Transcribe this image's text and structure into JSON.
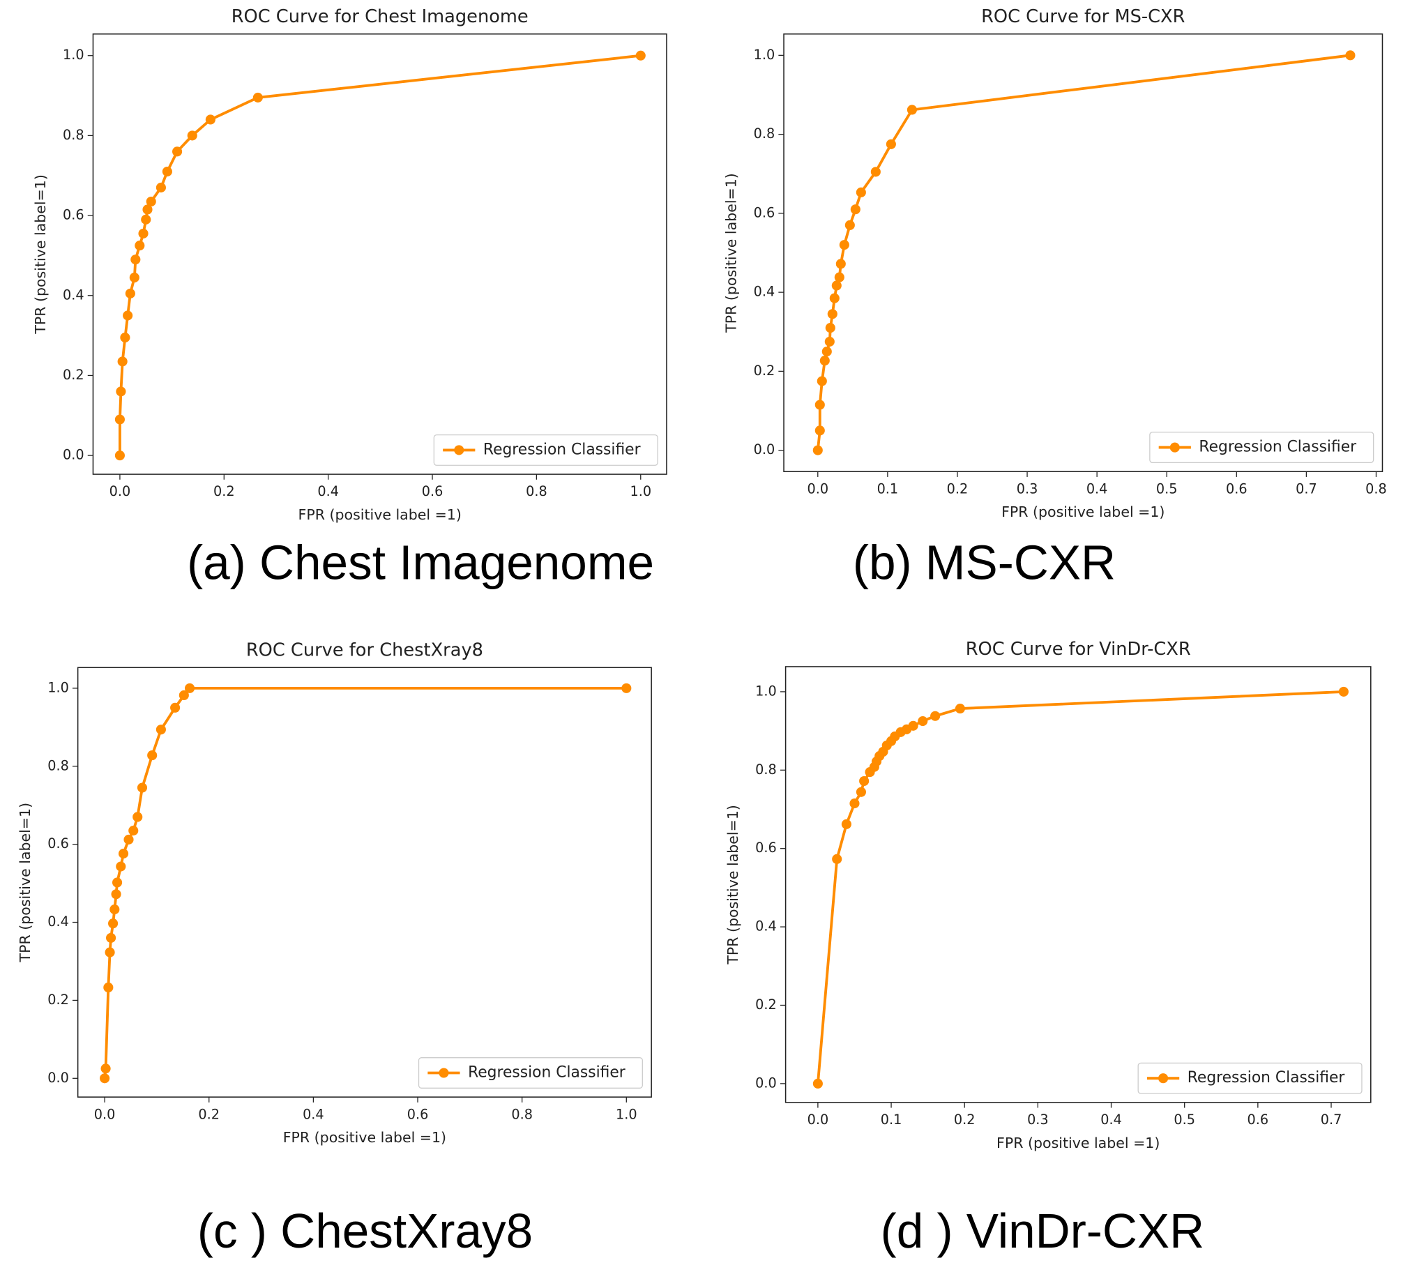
{
  "chart_data": [
    {
      "type": "line",
      "title": "ROC Curve for Chest Imagenome",
      "caption": "(a) Chest Imagenome",
      "xlabel": "FPR (positive label =1)",
      "ylabel": "TPR (positive label=1)",
      "xlim": [
        -0.0515,
        1.0498
      ],
      "ylim": [
        -0.047,
        1.054
      ],
      "xticks": [
        {
          "value": 0,
          "label": "0.0"
        },
        0.2,
        0.4,
        0.6,
        0.8,
        {
          "value": 1,
          "label": "1.0"
        }
      ],
      "yticks": [
        {
          "value": 0,
          "label": "0.0"
        },
        0.2,
        0.4,
        0.6,
        0.8,
        {
          "value": 1,
          "label": "1.0"
        }
      ],
      "legend": "lower right",
      "x": [
        0,
        0,
        0.002,
        0.005,
        0.01,
        0.015,
        0.02,
        0.028,
        0.03,
        0.038,
        0.045,
        0.05,
        0.053,
        0.06,
        0.079,
        0.091,
        0.11,
        0.139,
        0.174,
        0.265,
        1
      ],
      "series": [
        {
          "name": "Regression Classifier",
          "color": "#ff8c00",
          "values": [
            0,
            0.09,
            0.16,
            0.235,
            0.295,
            0.35,
            0.405,
            0.445,
            0.49,
            0.525,
            0.555,
            0.59,
            0.615,
            0.635,
            0.67,
            0.71,
            0.76,
            0.8,
            0.84,
            0.895,
            1
          ]
        }
      ]
    },
    {
      "type": "line",
      "title": "ROC Curve for MS-CXR",
      "caption": "(b) MS-CXR",
      "xlabel": "FPR (positive label =1)",
      "ylabel": "TPR (positive label=1)",
      "xlim": [
        -0.0487,
        0.809
      ],
      "ylim": [
        -0.054,
        1.054
      ],
      "xticks": [
        {
          "value": 0,
          "label": "0.0"
        },
        0.1,
        0.2,
        0.3,
        0.4,
        0.5,
        0.6,
        0.7,
        0.8
      ],
      "yticks": [
        {
          "value": 0,
          "label": "0.0"
        },
        0.2,
        0.4,
        0.6,
        0.8,
        {
          "value": 1,
          "label": "1.0"
        }
      ],
      "legend": "lower right",
      "x": [
        0,
        0.003,
        0.003,
        0.006,
        0.01,
        0.013,
        0.017,
        0.018,
        0.021,
        0.024,
        0.027,
        0.031,
        0.033,
        0.038,
        0.046,
        0.054,
        0.062,
        0.083,
        0.105,
        0.135,
        0.763
      ],
      "series": [
        {
          "name": "Regression Classifier",
          "color": "#ff8c00",
          "values": [
            0,
            0.05,
            0.115,
            0.175,
            0.227,
            0.25,
            0.275,
            0.31,
            0.345,
            0.385,
            0.417,
            0.438,
            0.472,
            0.52,
            0.57,
            0.61,
            0.653,
            0.705,
            0.775,
            0.862,
            1
          ]
        }
      ]
    },
    {
      "type": "line",
      "title": "ROC Curve for ChestXray8",
      "caption": "(c ) ChestXray8",
      "xlabel": "FPR (positive label =1)",
      "ylabel": "TPR (positive label=1)",
      "xlim": [
        -0.0514,
        1.0479
      ],
      "ylim": [
        -0.048,
        1.053
      ],
      "xticks": [
        {
          "value": 0,
          "label": "0.0"
        },
        0.2,
        0.4,
        0.6,
        0.8,
        {
          "value": 1,
          "label": "1.0"
        }
      ],
      "yticks": [
        {
          "value": 0,
          "label": "0.0"
        },
        0.2,
        0.4,
        0.6,
        0.8,
        {
          "value": 1,
          "label": "1.0"
        }
      ],
      "legend": "lower right",
      "x": [
        0,
        0.002,
        0.007,
        0.01,
        0.012,
        0.016,
        0.019,
        0.022,
        0.024,
        0.031,
        0.036,
        0.046,
        0.055,
        0.063,
        0.072,
        0.091,
        0.108,
        0.135,
        0.152,
        0.163,
        1
      ],
      "series": [
        {
          "name": "Regression Classifier",
          "color": "#ff8c00",
          "values": [
            0,
            0.025,
            0.233,
            0.323,
            0.36,
            0.397,
            0.433,
            0.472,
            0.502,
            0.543,
            0.576,
            0.612,
            0.635,
            0.67,
            0.745,
            0.828,
            0.894,
            0.95,
            0.982,
            1,
            1
          ]
        }
      ]
    },
    {
      "type": "line",
      "title": "ROC Curve for VinDr-CXR",
      "caption": "(d ) VinDr-CXR",
      "xlabel": "FPR (positive label =1)",
      "ylabel": "TPR (positive label=1)",
      "xlim": [
        -0.044,
        0.754
      ],
      "ylim": [
        -0.048,
        1.064
      ],
      "xticks": [
        {
          "value": 0,
          "label": "0.0"
        },
        0.1,
        0.2,
        0.3,
        0.4,
        0.5,
        0.6,
        0.7
      ],
      "yticks": [
        {
          "value": 0,
          "label": "0.0"
        },
        0.2,
        0.4,
        0.6,
        0.8,
        {
          "value": 1,
          "label": "1.0"
        }
      ],
      "legend": "lower right",
      "x": [
        0,
        0.026,
        0.039,
        0.05,
        0.059,
        0.063,
        0.071,
        0.077,
        0.08,
        0.084,
        0.089,
        0.094,
        0.1,
        0.105,
        0.113,
        0.121,
        0.13,
        0.143,
        0.16,
        0.194,
        0.717
      ],
      "series": [
        {
          "name": "Regression Classifier",
          "color": "#ff8c00",
          "values": [
            0,
            0.573,
            0.662,
            0.715,
            0.744,
            0.772,
            0.795,
            0.808,
            0.822,
            0.836,
            0.847,
            0.863,
            0.874,
            0.886,
            0.897,
            0.904,
            0.913,
            0.925,
            0.938,
            0.957,
            1
          ]
        }
      ]
    }
  ]
}
